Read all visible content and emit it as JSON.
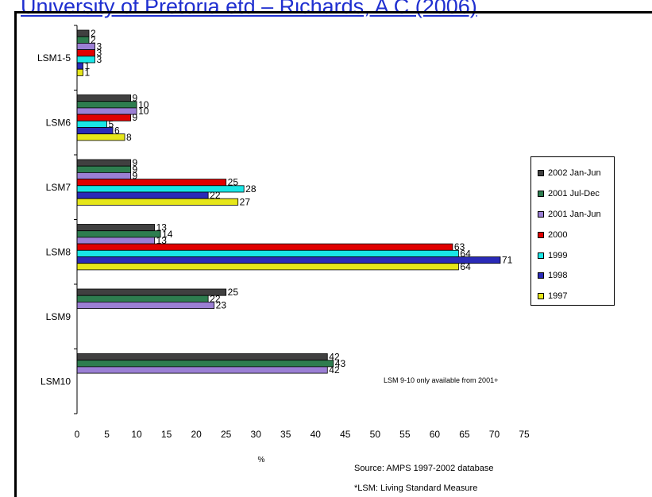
{
  "slide": {
    "title": "University of Pretoria etd – Richards, A C  (2006)"
  },
  "notes": {
    "availability": "LSM 9-10 only available from 2001+",
    "source": "Source:  AMPS 1997-2002 database",
    "lsm_definition": "*LSM:  Living Standard Measure"
  },
  "chart_data": {
    "type": "bar",
    "orientation": "horizontal",
    "title": "",
    "xlabel": "%",
    "ylabel": "",
    "xlim": [
      0,
      75
    ],
    "xticks": [
      0,
      5,
      10,
      15,
      20,
      25,
      30,
      35,
      40,
      45,
      50,
      55,
      60,
      65,
      70,
      75
    ],
    "categories": [
      "LSM1-5",
      "LSM6",
      "LSM7",
      "LSM8",
      "LSM9",
      "LSM10"
    ],
    "legend_position": "right",
    "grid": false,
    "series": [
      {
        "name": "2002 Jan-Jun",
        "color": "#404040",
        "values": [
          2,
          9,
          9,
          13,
          25,
          42
        ]
      },
      {
        "name": "2001 Jul-Dec",
        "color": "#2e7d4f",
        "values": [
          2,
          10,
          9,
          14,
          22,
          43
        ]
      },
      {
        "name": "2001 Jan-Jun",
        "color": "#9b7fd4",
        "values": [
          3,
          10,
          9,
          13,
          23,
          42
        ]
      },
      {
        "name": "2000",
        "color": "#e00000",
        "values": [
          3,
          9,
          25,
          63,
          null,
          null
        ]
      },
      {
        "name": "1999",
        "color": "#19e6e6",
        "values": [
          3,
          5,
          28,
          64,
          null,
          null
        ]
      },
      {
        "name": "1998",
        "color": "#2a2ab8",
        "values": [
          1,
          6,
          22,
          71,
          null,
          null
        ]
      },
      {
        "name": "1997",
        "color": "#e6e619",
        "values": [
          1,
          8,
          27,
          64,
          null,
          null
        ]
      }
    ]
  }
}
